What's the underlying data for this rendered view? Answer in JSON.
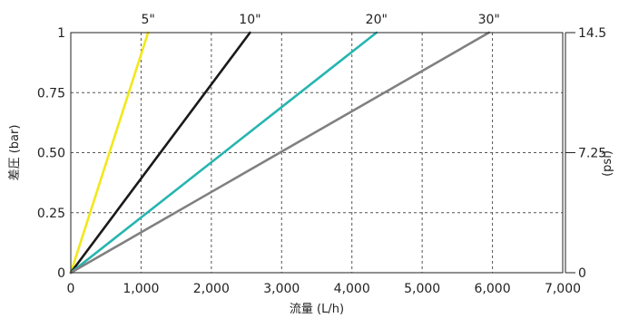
{
  "chart_data": {
    "type": "line",
    "xlabel": "流量 (L/h)",
    "ylabel": "差圧 (bar)",
    "y2label": "(psi)",
    "xlim": [
      0,
      7000
    ],
    "ylim": [
      0,
      1
    ],
    "y2lim": [
      0,
      14.5
    ],
    "grid": true,
    "x_ticks": [
      0,
      1000,
      2000,
      3000,
      4000,
      5000,
      6000,
      7000
    ],
    "x_tick_labels": [
      "0",
      "1,000",
      "2,000",
      "3,000",
      "4,000",
      "5,000",
      "6,000",
      "7,000"
    ],
    "y_ticks": [
      0,
      0.25,
      0.5,
      0.75,
      1
    ],
    "y_tick_labels": [
      "0",
      "0.25",
      "0.50",
      "0.75",
      "1"
    ],
    "y2_ticks": [
      0,
      7.25,
      14.5
    ],
    "y2_tick_labels": [
      "0",
      "7.25",
      "14.5"
    ],
    "series": [
      {
        "name": "5\"",
        "color": "#f2e81a",
        "x": [
          0,
          1100
        ],
        "y": [
          0,
          1
        ]
      },
      {
        "name": "10\"",
        "color": "#1a1a1a",
        "x": [
          0,
          2550
        ],
        "y": [
          0,
          1
        ]
      },
      {
        "name": "20\"",
        "color": "#26b5b0",
        "x": [
          0,
          4350
        ],
        "y": [
          0,
          1
        ]
      },
      {
        "name": "30\"",
        "color": "#808080",
        "x": [
          0,
          5950
        ],
        "y": [
          0,
          1
        ]
      }
    ]
  }
}
